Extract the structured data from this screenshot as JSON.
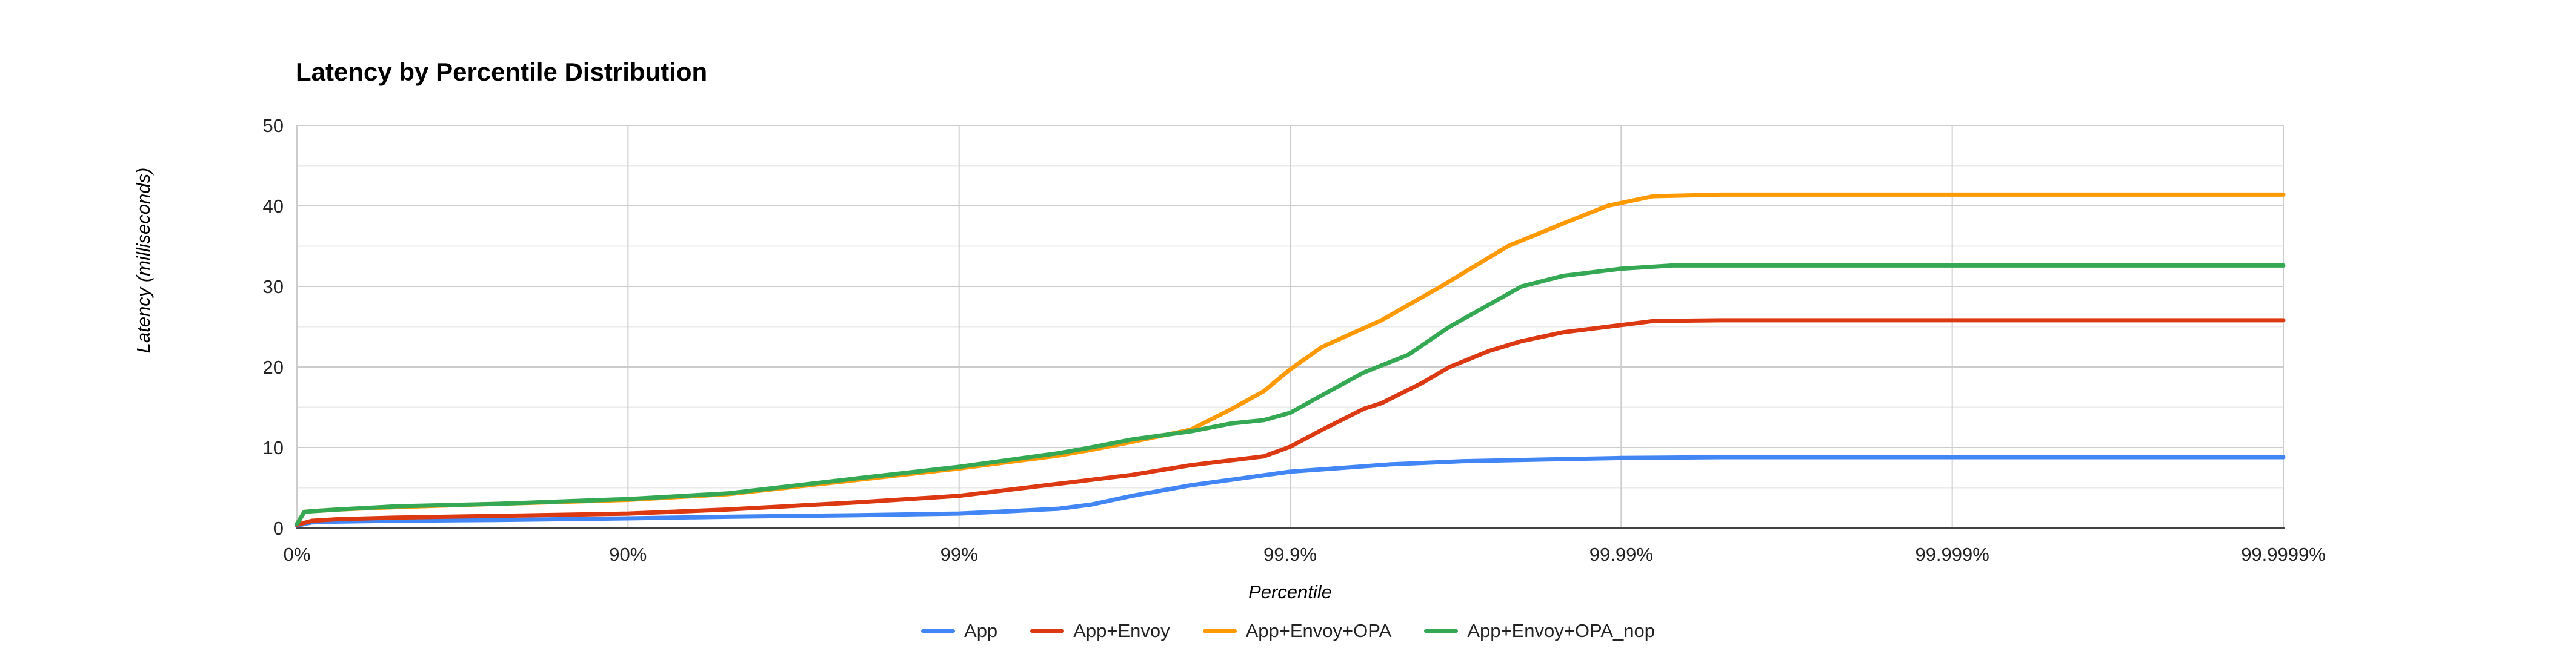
{
  "chart": {
    "title": "Latency by Percentile Distribution",
    "y_axis_title": "Latency (milliseconds)",
    "x_axis_title": "Percentile"
  },
  "chart_data": {
    "type": "line",
    "title": "Latency by Percentile Distribution",
    "xlabel": "Percentile",
    "ylabel": "Latency (milliseconds)",
    "x_scale": "hdr-percentile-log, decades = -log10(1-p/100)",
    "x_tick_labels": [
      "0%",
      "90%",
      "99%",
      "99.9%",
      "99.99%",
      "99.999%",
      "99.9999%"
    ],
    "x_tick_decades": [
      0,
      1,
      2,
      3,
      4,
      5,
      6
    ],
    "ylim": [
      0,
      50
    ],
    "y_major_ticks": [
      0,
      10,
      20,
      30,
      40,
      50
    ],
    "y_minor_step": 5,
    "grid": true,
    "legend_position": "bottom",
    "background_color": "#ffffff",
    "gridline_color": "#cccccc",
    "minor_gridline_color": "#ebebeb",
    "baseline_color": "#424242",
    "series": [
      {
        "name": "App",
        "color": "#4285F4",
        "points_percentile_ms": [
          [
            0,
            0.3
          ],
          [
            10,
            0.7
          ],
          [
            25,
            0.8
          ],
          [
            50,
            0.9
          ],
          [
            75,
            1.0
          ],
          [
            90,
            1.2
          ],
          [
            95,
            1.4
          ],
          [
            98,
            1.6
          ],
          [
            99,
            1.8
          ],
          [
            99.3,
            2.1
          ],
          [
            99.5,
            2.4
          ],
          [
            99.6,
            2.9
          ],
          [
            99.7,
            4.0
          ],
          [
            99.8,
            5.3
          ],
          [
            99.9,
            7.0
          ],
          [
            99.95,
            7.9
          ],
          [
            99.97,
            8.3
          ],
          [
            99.99,
            8.7
          ],
          [
            99.995,
            8.8
          ],
          [
            99.999,
            8.8
          ],
          [
            99.9999,
            8.8
          ]
        ]
      },
      {
        "name": "App+Envoy",
        "color": "#DC3912",
        "points_percentile_ms": [
          [
            0,
            0.4
          ],
          [
            10,
            0.9
          ],
          [
            25,
            1.1
          ],
          [
            50,
            1.3
          ],
          [
            75,
            1.5
          ],
          [
            90,
            1.8
          ],
          [
            95,
            2.3
          ],
          [
            98,
            3.2
          ],
          [
            99,
            4.0
          ],
          [
            99.5,
            5.5
          ],
          [
            99.7,
            6.6
          ],
          [
            99.8,
            7.8
          ],
          [
            99.88,
            8.9
          ],
          [
            99.9,
            10.1
          ],
          [
            99.92,
            12.2
          ],
          [
            99.94,
            14.8
          ],
          [
            99.947,
            15.5
          ],
          [
            99.96,
            18.0
          ],
          [
            99.967,
            20.0
          ],
          [
            99.975,
            22.0
          ],
          [
            99.98,
            23.2
          ],
          [
            99.985,
            24.3
          ],
          [
            99.99,
            25.2
          ],
          [
            99.992,
            25.7
          ],
          [
            99.995,
            25.8
          ],
          [
            99.999,
            25.8
          ],
          [
            99.9999,
            25.8
          ]
        ]
      },
      {
        "name": "App+Envoy+OPA",
        "color": "#FF9900",
        "points_percentile_ms": [
          [
            0,
            0.5
          ],
          [
            5,
            2.0
          ],
          [
            10,
            2.1
          ],
          [
            25,
            2.3
          ],
          [
            50,
            2.6
          ],
          [
            75,
            3.0
          ],
          [
            90,
            3.5
          ],
          [
            95,
            4.2
          ],
          [
            98,
            6.0
          ],
          [
            99,
            7.4
          ],
          [
            99.5,
            9.0
          ],
          [
            99.6,
            9.7
          ],
          [
            99.7,
            10.7
          ],
          [
            99.8,
            12.2
          ],
          [
            99.85,
            14.8
          ],
          [
            99.88,
            17.0
          ],
          [
            99.9,
            19.7
          ],
          [
            99.92,
            22.5
          ],
          [
            99.947,
            25.8
          ],
          [
            99.965,
            30.0
          ],
          [
            99.978,
            35.0
          ],
          [
            99.985,
            37.8
          ],
          [
            99.989,
            40.0
          ],
          [
            99.992,
            41.2
          ],
          [
            99.995,
            41.4
          ],
          [
            99.999,
            41.4
          ],
          [
            99.9999,
            41.4
          ]
        ]
      },
      {
        "name": "App+Envoy+OPA_nop",
        "color": "#34A853",
        "points_percentile_ms": [
          [
            0,
            0.5
          ],
          [
            5,
            2.0
          ],
          [
            10,
            2.1
          ],
          [
            25,
            2.3
          ],
          [
            50,
            2.7
          ],
          [
            75,
            3.0
          ],
          [
            90,
            3.6
          ],
          [
            95,
            4.3
          ],
          [
            98,
            6.2
          ],
          [
            99,
            7.6
          ],
          [
            99.5,
            9.3
          ],
          [
            99.6,
            10.0
          ],
          [
            99.7,
            11.0
          ],
          [
            99.8,
            12.0
          ],
          [
            99.85,
            13.0
          ],
          [
            99.88,
            13.4
          ],
          [
            99.9,
            14.3
          ],
          [
            99.92,
            16.5
          ],
          [
            99.94,
            19.3
          ],
          [
            99.956,
            21.5
          ],
          [
            99.967,
            25.0
          ],
          [
            99.98,
            30.0
          ],
          [
            99.985,
            31.3
          ],
          [
            99.99,
            32.2
          ],
          [
            99.993,
            32.6
          ],
          [
            99.995,
            32.6
          ],
          [
            99.999,
            32.6
          ],
          [
            99.9999,
            32.6
          ]
        ]
      }
    ]
  }
}
